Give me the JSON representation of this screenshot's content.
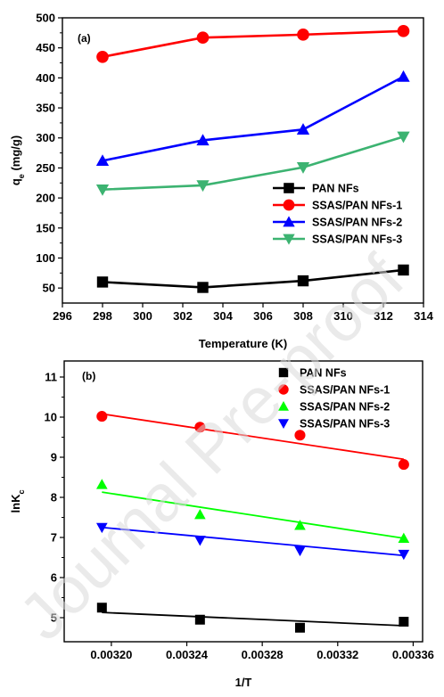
{
  "watermark": "Journal Pre-proof",
  "chart_data": [
    {
      "type": "line",
      "panel_label": "(a)",
      "xlabel": "Temperature (K)",
      "ylabel": "q_e (mg/g)",
      "ylabel_main": "q",
      "ylabel_sub": "e",
      "ylabel_rest": " (mg/g)",
      "xlim": [
        296,
        314
      ],
      "ylim": [
        25,
        500
      ],
      "xticks": [
        296,
        298,
        300,
        302,
        304,
        306,
        308,
        310,
        312,
        314
      ],
      "yticks": [
        50,
        100,
        150,
        200,
        250,
        300,
        350,
        400,
        450,
        500
      ],
      "x": [
        298,
        303,
        308,
        313
      ],
      "legend_position": "right",
      "series": [
        {
          "name": "PAN NFs",
          "marker": "square",
          "color": "#000000",
          "values": [
            60,
            51,
            62,
            80
          ]
        },
        {
          "name": "SSAS/PAN NFs-1",
          "marker": "circle",
          "color": "#ff0000",
          "values": [
            435,
            467,
            472,
            478
          ]
        },
        {
          "name": "SSAS/PAN NFs-2",
          "marker": "triangle-up",
          "color": "#0000ff",
          "values": [
            262,
            296,
            314,
            402
          ]
        },
        {
          "name": "SSAS/PAN NFs-3",
          "marker": "triangle-down",
          "color": "#3cb371",
          "values": [
            214,
            221,
            251,
            302
          ]
        }
      ]
    },
    {
      "type": "scatter",
      "panel_label": "(b)",
      "xlabel": "1/T",
      "ylabel": "lnK_c",
      "ylabel_main": "lnK",
      "ylabel_sub": "c",
      "xlim": [
        0.003175,
        0.003365
      ],
      "ylim": [
        4.4,
        11.4
      ],
      "xticks": [
        "0.00320",
        "0.00324",
        "0.00328",
        "0.00332",
        "0.00336"
      ],
      "yticks": [
        5,
        6,
        7,
        8,
        9,
        10,
        11
      ],
      "x": [
        0.003195,
        0.003247,
        0.0033,
        0.003355
      ],
      "legend_position": "top-right",
      "series": [
        {
          "name": "PAN NFs",
          "marker": "square",
          "color": "#000000",
          "values": [
            5.25,
            4.95,
            4.75,
            4.9
          ],
          "fit": [
            5.13,
            4.8
          ]
        },
        {
          "name": "SSAS/PAN NFs-1",
          "marker": "circle",
          "color": "#ff0000",
          "values": [
            10.02,
            9.75,
            9.55,
            8.82
          ],
          "fit": [
            10.08,
            8.95
          ]
        },
        {
          "name": "SSAS/PAN NFs-2",
          "marker": "triangle-up",
          "color": "#00ff00",
          "values": [
            8.32,
            7.57,
            7.3,
            6.98
          ],
          "fit": [
            8.13,
            6.98
          ]
        },
        {
          "name": "SSAS/PAN NFs-3",
          "marker": "triangle-down",
          "color": "#0000ff",
          "values": [
            7.25,
            6.93,
            6.67,
            6.58
          ],
          "fit": [
            7.25,
            6.55
          ]
        }
      ]
    }
  ]
}
